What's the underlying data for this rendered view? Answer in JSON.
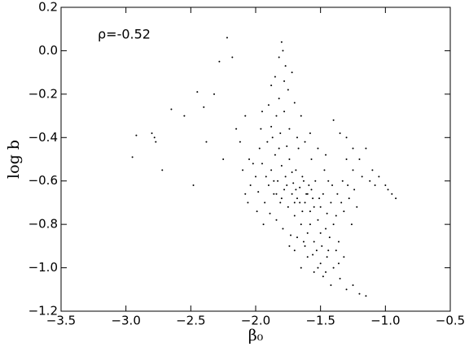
{
  "chart_data": {
    "type": "scatter",
    "annotation": "ρ=-0.52",
    "xlabel": "β₀",
    "ylabel": "log b",
    "color": "#000000",
    "xlim": [
      -3.5,
      -0.5
    ],
    "ylim": [
      -1.2,
      0.2
    ],
    "xticks": [
      {
        "value": -3.5,
        "label": "−3.5"
      },
      {
        "value": -3.0,
        "label": "−3.0"
      },
      {
        "value": -2.5,
        "label": "−2.5"
      },
      {
        "value": -2.0,
        "label": "−2.0"
      },
      {
        "value": -1.5,
        "label": "−1.5"
      },
      {
        "value": -1.0,
        "label": "−1.0"
      },
      {
        "value": -0.5,
        "label": "−0.5"
      }
    ],
    "yticks": [
      {
        "value": -1.2,
        "label": "−1.2"
      },
      {
        "value": -1.0,
        "label": "−1.0"
      },
      {
        "value": -0.8,
        "label": "−0.8"
      },
      {
        "value": -0.6,
        "label": "−0.6"
      },
      {
        "value": -0.4,
        "label": "−0.4"
      },
      {
        "value": -0.2,
        "label": "−0.2"
      },
      {
        "value": 0.0,
        "label": "0.0"
      },
      0.2
    ],
    "x": [
      -2.92,
      -2.95,
      -2.8,
      -2.78,
      -2.77,
      -2.72,
      -2.65,
      -2.55,
      -2.48,
      -2.45,
      -2.4,
      -2.38,
      -2.32,
      -2.28,
      -2.25,
      -2.22,
      -2.18,
      -2.15,
      -2.12,
      -2.1,
      -2.08,
      -2.05,
      -1.8,
      -1.79,
      -1.82,
      -1.77,
      -1.85,
      -1.78,
      -1.75,
      -1.88,
      -1.72,
      -1.82,
      -1.9,
      -1.7,
      -1.78,
      -1.84,
      -1.95,
      -1.65,
      -1.4,
      -1.35,
      -1.3,
      -1.25,
      -1.2,
      -1.15,
      -1.1,
      -1.05,
      -1,
      -0.95,
      -0.92,
      -0.98,
      -1.08,
      -1.12,
      -1.18,
      -1.25,
      -1.3,
      -1.45,
      -1.4,
      -1.35,
      -1.3,
      -1.25,
      -1.5,
      -1.55,
      -1.6,
      -1.42,
      -1.48,
      -1.2,
      -1.15,
      -1.38,
      -1.65,
      -1.7,
      -1.95,
      -1.92,
      -1.9,
      -1.88,
      -1.86,
      -1.85,
      -1.83,
      -1.81,
      -1.8,
      -1.78,
      -1.77,
      -1.75,
      -1.74,
      -1.72,
      -1.71,
      -1.7,
      -1.69,
      -1.68,
      -1.66,
      -1.65,
      -1.64,
      -1.62,
      -1.61,
      -1.6,
      -1.59,
      -1.58,
      -1.56,
      -1.55,
      -1.54,
      -1.52,
      -1.5,
      -1.49,
      -1.48,
      -1.46,
      -1.45,
      -1.43,
      -1.42,
      -1.4,
      -1.38,
      -1.36,
      -2,
      -1.98,
      -1.97,
      -1.93,
      -1.91,
      -1.89,
      -1.87,
      -1.84,
      -1.82,
      -1.79,
      -1.76,
      -1.73,
      -1.67,
      -1.63,
      -1.57,
      -1.53,
      -1.47,
      -1.44,
      -1.41,
      -1.37,
      -1.34,
      -1.32,
      -1.28,
      -1.26,
      -1.22,
      -1.33,
      -1.29,
      -1.24,
      -2.02,
      -2.04,
      -2.06,
      -2.08,
      -1.99,
      -1.94,
      -1.96,
      -1.88,
      -1.81,
      -1.74,
      -1.68,
      -1.62,
      -1.58,
      -1.52,
      -1.46,
      -1.72,
      -1.76,
      -1.69,
      -1.66,
      -1.63,
      -1.6,
      -1.57,
      -1.55,
      -1.51,
      -1.84,
      -1.8,
      -1.86,
      -1.7,
      -1.64,
      -1.58,
      -1.5,
      -1.44,
      -1.56,
      -1.62,
      -1.68,
      -1.74,
      -1.52,
      -1.46,
      -1.36,
      -1.32
    ],
    "values": [
      -0.39,
      -0.49,
      -0.38,
      -0.4,
      -0.42,
      -0.55,
      -0.27,
      -0.3,
      -0.62,
      -0.19,
      -0.26,
      -0.42,
      -0.2,
      -0.05,
      -0.5,
      0.06,
      -0.03,
      -0.36,
      -0.42,
      -0.55,
      -0.3,
      -0.5,
      0.04,
      0,
      -0.03,
      -0.07,
      -0.12,
      -0.14,
      -0.18,
      -0.16,
      -0.1,
      -0.22,
      -0.25,
      -0.24,
      -0.28,
      -0.3,
      -0.28,
      -0.3,
      -0.32,
      -0.38,
      -0.4,
      -0.45,
      -0.5,
      -0.45,
      -0.55,
      -0.58,
      -0.62,
      -0.66,
      -0.68,
      -0.64,
      -0.62,
      -0.6,
      -0.58,
      -0.55,
      -0.5,
      -0.95,
      -1,
      -1.05,
      -1.1,
      -1.08,
      -0.98,
      -1.02,
      -0.95,
      -1.08,
      -1.04,
      -1.12,
      -1.13,
      -0.92,
      -1,
      -0.92,
      -0.52,
      -0.58,
      -0.62,
      -0.55,
      -0.66,
      -0.48,
      -0.6,
      -0.7,
      -0.53,
      -0.64,
      -0.58,
      -0.72,
      -0.5,
      -0.66,
      -0.61,
      -0.76,
      -0.55,
      -0.68,
      -0.63,
      -0.8,
      -0.58,
      -0.7,
      -0.66,
      -0.84,
      -0.62,
      -0.74,
      -0.68,
      -0.88,
      -0.6,
      -0.78,
      -0.72,
      -0.9,
      -0.66,
      -0.82,
      -0.75,
      -0.86,
      -0.7,
      -0.8,
      -0.76,
      -0.88,
      -0.58,
      -0.65,
      -0.45,
      -0.7,
      -0.42,
      -0.75,
      -0.4,
      -0.78,
      -0.45,
      -0.82,
      -0.44,
      -0.85,
      -0.45,
      -0.88,
      -0.5,
      -0.92,
      -0.55,
      -0.6,
      -0.62,
      -0.66,
      -0.7,
      -0.74,
      -0.68,
      -0.8,
      -0.72,
      -0.6,
      -0.62,
      -0.64,
      -0.52,
      -0.62,
      -0.7,
      -0.66,
      -0.74,
      -0.8,
      -0.36,
      -0.35,
      -0.38,
      -0.36,
      -0.4,
      -0.42,
      -0.38,
      -0.45,
      -0.48,
      -0.56,
      -0.62,
      -0.64,
      -0.7,
      -0.6,
      -0.66,
      -0.64,
      -0.72,
      -0.68,
      -0.66,
      -0.68,
      -0.6,
      -0.7,
      -0.74,
      -0.8,
      -0.84,
      -0.92,
      -0.94,
      -0.9,
      -0.86,
      -0.9,
      -1,
      -1.02,
      -0.98,
      -0.95
    ]
  }
}
